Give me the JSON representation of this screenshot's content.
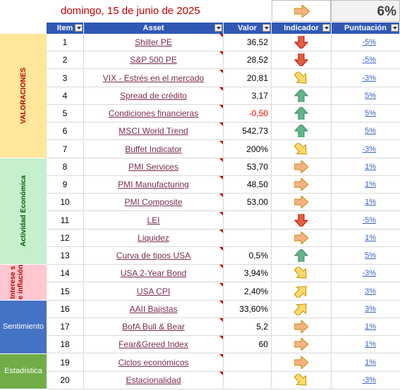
{
  "header": {
    "date": "domingo, 15 de junio de 2025",
    "summary_indicator": "right-arrow-icon",
    "summary_score": "6%"
  },
  "columns": [
    "Item",
    "Asset",
    "Valor",
    "Indicador",
    "Puntuación"
  ],
  "categories": [
    {
      "label": "VALORACIONES",
      "color": "#ffe699",
      "text_color": "#c00000"
    },
    {
      "label": "Actividad Económica",
      "color": "#c6efce",
      "text_color": "#006100"
    },
    {
      "label": "Interese s e inflación",
      "color": "#ffc7ce",
      "text_color": "#c00000"
    },
    {
      "label": "Sentimiento",
      "color": "#4472c4",
      "text_color": "#ffffff"
    },
    {
      "label": "Estadística",
      "color": "#70ad47",
      "text_color": "#ffffff"
    }
  ],
  "rows": [
    {
      "item": "1",
      "asset": "Shiller PE",
      "value": "36,52",
      "value_color": "#000000",
      "indicator": "down-arrow-icon",
      "score": "-5%"
    },
    {
      "item": "2",
      "asset": "S&P 500 PE",
      "value": "28,52",
      "value_color": "#000000",
      "indicator": "down-arrow-icon",
      "score": "-5%"
    },
    {
      "item": "3",
      "asset": "VIX - Estrés en el mercado",
      "value": "20,81",
      "value_color": "#000000",
      "indicator": "down-right-arrow-icon",
      "score": "-3%"
    },
    {
      "item": "4",
      "asset": "Spread de crédito",
      "value": "3,17",
      "value_color": "#000000",
      "indicator": "up-arrow-icon",
      "score": "5%"
    },
    {
      "item": "5",
      "asset": "Condiciones financieras",
      "value": "-0,50",
      "value_color": "#ff0000",
      "indicator": "up-arrow-icon",
      "score": "5%"
    },
    {
      "item": "6",
      "asset": "MSCI World Trend",
      "value": "542,73",
      "value_color": "#000000",
      "indicator": "up-arrow-icon",
      "score": "5%"
    },
    {
      "item": "7",
      "asset": "Buffet Indicator",
      "value": "200%",
      "value_color": "#000000",
      "indicator": "down-right-arrow-icon",
      "score": "-3%"
    },
    {
      "item": "8",
      "asset": "PMI Services",
      "value": "53,70",
      "value_color": "#000000",
      "indicator": "right-arrow-icon",
      "score": "1%"
    },
    {
      "item": "9",
      "asset": "PMI Manufacturing",
      "value": "48,50",
      "value_color": "#000000",
      "indicator": "right-arrow-icon",
      "score": "1%"
    },
    {
      "item": "10",
      "asset": "PMI Composite",
      "value": "53,00",
      "value_color": "#000000",
      "indicator": "right-arrow-icon",
      "score": "1%"
    },
    {
      "item": "11",
      "asset": "LEI",
      "value": "",
      "value_color": "#000000",
      "indicator": "down-arrow-icon",
      "score": "-5%"
    },
    {
      "item": "12",
      "asset": "Liquidez",
      "value": "",
      "value_color": "#000000",
      "indicator": "right-arrow-icon",
      "score": "1%"
    },
    {
      "item": "13",
      "asset": "Curva de tipos USA",
      "value": "0,5%",
      "value_color": "#000000",
      "indicator": "up-arrow-icon",
      "score": "5%"
    },
    {
      "item": "14",
      "asset": "USA 2-Year Bond",
      "value": "3,94%",
      "value_color": "#000000",
      "indicator": "down-right-arrow-icon",
      "score": "-3%"
    },
    {
      "item": "15",
      "asset": "USA CPI",
      "value": "2,40%",
      "value_color": "#000000",
      "indicator": "up-right-arrow-icon",
      "score": "3%"
    },
    {
      "item": "16",
      "asset": "AAII Bajistas",
      "value": "33,60%",
      "value_color": "#000000",
      "indicator": "up-right-arrow-icon",
      "score": "3%"
    },
    {
      "item": "17",
      "asset": "BofA Bull & Bear",
      "value": "5,2",
      "value_color": "#000000",
      "indicator": "right-arrow-icon",
      "score": "1%"
    },
    {
      "item": "18",
      "asset": "Fear&Greed Index",
      "value": "60",
      "value_color": "#000000",
      "indicator": "right-arrow-icon",
      "score": "1%"
    },
    {
      "item": "19",
      "asset": "Ciclos económicos",
      "value": "",
      "value_color": "#000000",
      "indicator": "right-arrow-icon",
      "score": "1%"
    },
    {
      "item": "20",
      "asset": "Estacionalidad",
      "value": "",
      "value_color": "#000000",
      "indicator": "down-right-arrow-icon",
      "score": "-3%"
    }
  ]
}
